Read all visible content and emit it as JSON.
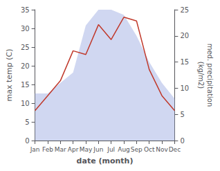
{
  "chart_data": {
    "type": "line",
    "categories": [
      "Jan",
      "Feb",
      "Mar",
      "Apr",
      "May",
      "Jun",
      "Jul",
      "Aug",
      "Sep",
      "Oct",
      "Nov",
      "Dec"
    ],
    "xlabel": "date (month)",
    "ylabel": "max temp (C)",
    "y2label": "med. precipitation\n(kg/m2)",
    "ylim": [
      0,
      35
    ],
    "yticks": [
      0,
      5,
      10,
      15,
      20,
      25,
      30,
      35
    ],
    "y2lim": [
      0,
      25
    ],
    "y2ticks": [
      0,
      5,
      10,
      15,
      20,
      25
    ],
    "grid": false,
    "series": [
      {
        "type": "area",
        "axis": "y2",
        "color": "#b0bce8",
        "values": [
          9,
          9,
          11,
          13,
          22,
          25,
          25,
          24,
          20,
          15,
          11,
          8
        ]
      },
      {
        "type": "line",
        "color": "#c0392b",
        "values": [
          8,
          12,
          16,
          24,
          23,
          31,
          27,
          33,
          32,
          19,
          12,
          8
        ]
      }
    ]
  }
}
